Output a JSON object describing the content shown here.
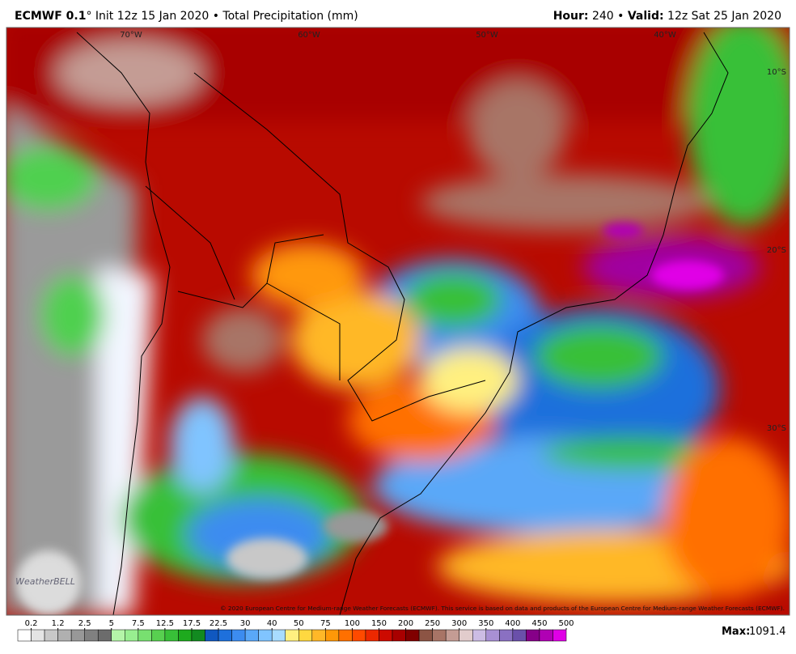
{
  "header": {
    "model": "ECMWF 0.1",
    "subtitle": "° Init 12z 15 Jan 2020 • Total Precipitation (mm)",
    "hour_label": "Hour:",
    "hour": " 240 • ",
    "valid_label": "Valid:",
    "valid": " 12z Sat 25 Jan 2020"
  },
  "map": {
    "lon_labels": [
      "70°W",
      "60°W",
      "50°W",
      "40°W"
    ],
    "lat_labels": [
      "10°S",
      "20°S",
      "30°S"
    ],
    "copyright": "© 2020 European Centre for Medium-range Weather Forecasts (ECMWF). This service is based on data and products of the European Centre for Medium-range Weather Forecasts (ECMWF).",
    "logo": "WeatherBELL"
  },
  "colorbar": {
    "colors": [
      "#ffffff",
      "#e4e4e4",
      "#c8c8c8",
      "#b0b0b0",
      "#989898",
      "#808080",
      "#6c6c6c",
      "#b4f5a8",
      "#98ee90",
      "#78e070",
      "#58d050",
      "#38c038",
      "#1eaa1e",
      "#128a20",
      "#1058c0",
      "#1e70dc",
      "#3c8cf0",
      "#5aa8f8",
      "#80c4ff",
      "#a8dcff",
      "#fff080",
      "#ffd840",
      "#ffb828",
      "#ff9808",
      "#ff7000",
      "#ff4a00",
      "#ec2800",
      "#cc0a00",
      "#a80000",
      "#800000",
      "#8c5444",
      "#a87466",
      "#c49c94",
      "#e2cccc",
      "#ccbce4",
      "#a890d4",
      "#8a70c2",
      "#6a50aa",
      "#860088",
      "#b000b4",
      "#e000e6"
    ],
    "ticks": [
      0.2,
      1.2,
      2.5,
      5,
      7.5,
      12.5,
      17.5,
      22.5,
      30,
      40,
      50,
      75,
      100,
      150,
      200,
      250,
      300,
      350,
      400,
      450,
      500
    ]
  },
  "footer": {
    "max_label": "Max:",
    "max_value": "1091.4"
  }
}
